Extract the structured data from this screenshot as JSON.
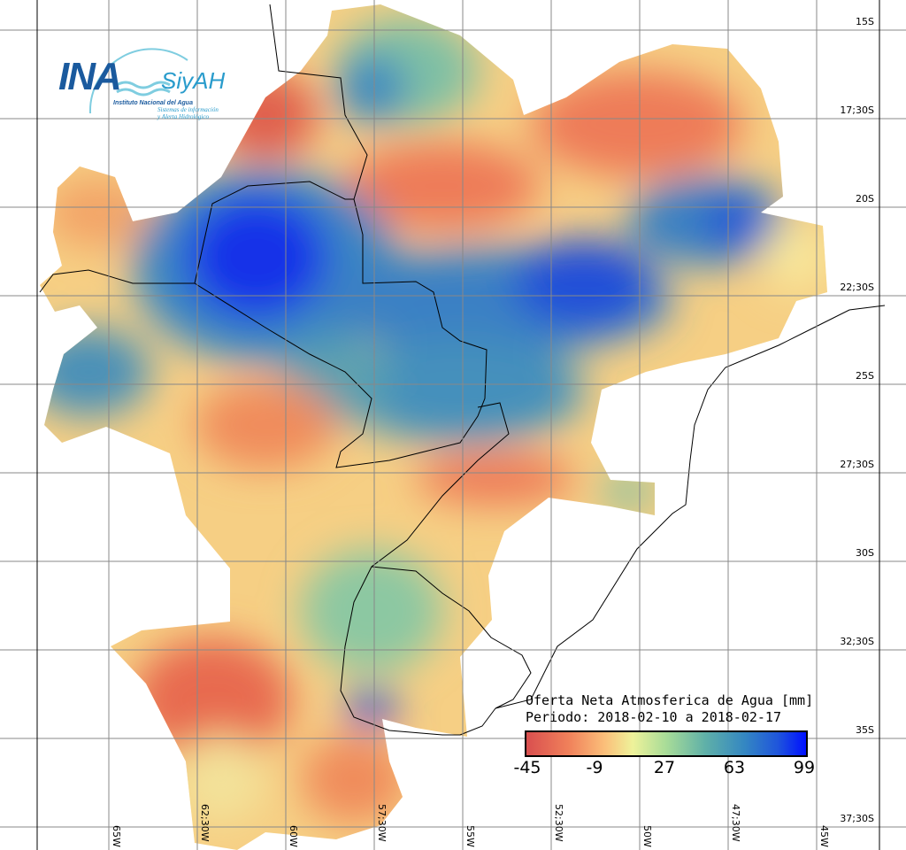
{
  "logo": {
    "acronym": "INA",
    "system": "SiyAH",
    "institution": "Instituto Nacional del Agua",
    "system_full_1": "Sistemas de información",
    "system_full_2": "y Alerta Hidrológico"
  },
  "legend": {
    "title": "Oferta Neta Atmosferica de Agua [mm]",
    "period": "Periodo: 2018-02-10 a 2018-02-17",
    "ticks": [
      "-45",
      "-9",
      "27",
      "63",
      "99"
    ],
    "colors": [
      "#d94f4f",
      "#f0805a",
      "#fbbf7a",
      "#eef29a",
      "#a8dc98",
      "#5fb0a8",
      "#3487c2",
      "#1f55dc",
      "#0010ff"
    ]
  },
  "latitude_labels": [
    "15S",
    "17;30S",
    "20S",
    "22;30S",
    "25S",
    "27;30S",
    "30S",
    "32;30S",
    "35S",
    "37;30S"
  ],
  "longitude_labels": [
    "65W",
    "62;30W",
    "60W",
    "57;30W",
    "55W",
    "52;30W",
    "50W",
    "47;30W",
    "45W"
  ]
}
